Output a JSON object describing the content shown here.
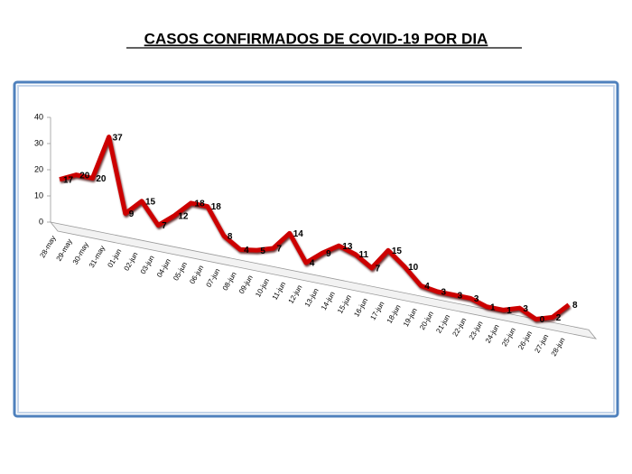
{
  "chart_data": {
    "type": "line",
    "title": "CASOS CONFIRMADOS DE COVID-19 POR DIA",
    "categories": [
      "28-may",
      "29-may",
      "30-may",
      "31-may",
      "01-jun",
      "02-jun",
      "03-jun",
      "04-jun",
      "05-jun",
      "06-jun",
      "07-jun",
      "08-jun",
      "09-jun",
      "10-jun",
      "11-jun",
      "12-jun",
      "13-jun",
      "14-jun",
      "15-jun",
      "16-jun",
      "17-jun",
      "18-jun",
      "19-jun",
      "20-jun",
      "21-jun",
      "22-jun",
      "23-jun",
      "24-jun",
      "25-jun",
      "26-jun",
      "27-jun",
      "28-jun"
    ],
    "series": [
      {
        "name": "Casos",
        "color": "#cc0000",
        "values": [
          17,
          20,
          20,
          37,
          9,
          15,
          7,
          12,
          18,
          18,
          8,
          4,
          5,
          7,
          14,
          4,
          9,
          13,
          11,
          7,
          15,
          10,
          4,
          3,
          3,
          3,
          1,
          1,
          3,
          0,
          2,
          8
        ]
      }
    ],
    "ylim": [
      0,
      40
    ],
    "yticks": [
      0,
      10,
      20,
      30,
      40
    ]
  }
}
